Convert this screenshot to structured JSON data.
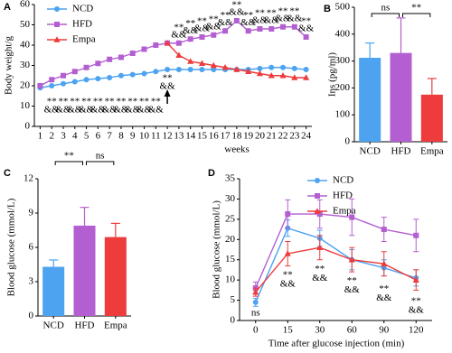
{
  "chart_data": [
    {
      "type": "line",
      "panel": "A",
      "ylabel": "Body weight/g",
      "xlabel": "weeks",
      "categories": [
        "1",
        "2",
        "3",
        "4",
        "5",
        "6",
        "7",
        "8",
        "9",
        "10",
        "11",
        "12",
        "13",
        "14",
        "15",
        "16",
        "17",
        "18",
        "19",
        "20",
        "21",
        "22",
        "23",
        "24"
      ],
      "series": [
        {
          "name": "NCD",
          "color": "#4da3f0",
          "marker": "circle",
          "values": [
            19,
            20,
            21,
            22,
            23,
            23.5,
            24,
            25,
            25.5,
            26,
            27,
            28,
            28,
            28,
            28,
            28,
            28,
            28,
            28,
            28.5,
            29,
            29,
            28.5,
            28
          ]
        },
        {
          "name": "HFD",
          "color": "#b35fd1",
          "marker": "square",
          "values": [
            20,
            23,
            25,
            27,
            29,
            31,
            33,
            34,
            36,
            38,
            40,
            41,
            41,
            43,
            44,
            45,
            47,
            52,
            47,
            48,
            48,
            49,
            49,
            44
          ]
        },
        {
          "name": "Empa",
          "color": "#ee3b3b",
          "marker": "triangle",
          "values": [
            null,
            null,
            null,
            null,
            null,
            null,
            null,
            null,
            null,
            null,
            null,
            41,
            35,
            32,
            31,
            30,
            29,
            28,
            27,
            26,
            25,
            25,
            24,
            24
          ]
        }
      ],
      "ylim": [
        0,
        60
      ],
      "yticks": [
        0,
        10,
        20,
        30,
        40,
        50,
        60
      ],
      "sig_upper_1": [
        null,
        null,
        null,
        null,
        null,
        null,
        null,
        null,
        null,
        null,
        null,
        null,
        "**",
        "**",
        "**",
        "**",
        "**",
        "**",
        "**",
        "**",
        "**",
        "**",
        "**",
        "**"
      ],
      "sig_upper_2": [
        null,
        null,
        null,
        null,
        null,
        null,
        null,
        null,
        null,
        null,
        null,
        null,
        "&&",
        "&&",
        "&&",
        "&&",
        "&&",
        "&&",
        "&&",
        "&&",
        "&&",
        "&&",
        "&&",
        "&&"
      ],
      "sig_lower_1": [
        null,
        "**",
        "**",
        "**",
        "**",
        "**",
        "**",
        "**",
        "**",
        "**",
        "**",
        "**",
        null,
        null,
        null,
        null,
        null,
        null,
        null,
        null,
        null,
        null,
        null,
        null
      ],
      "sig_lower_2": [
        null,
        "&&",
        "&&",
        "&&",
        "&&",
        "&&",
        "&&",
        "&&",
        "&&",
        "&&",
        "&&",
        "&&",
        null,
        null,
        null,
        null,
        null,
        null,
        null,
        null,
        null,
        null,
        null,
        null
      ]
    },
    {
      "type": "bar",
      "panel": "B",
      "ylabel": "Ins (pg/ml)",
      "categories": [
        "NCD",
        "HFD",
        "Empa"
      ],
      "values": [
        312,
        330,
        175
      ],
      "errors": [
        55,
        130,
        60
      ],
      "colors": [
        "#4da3f0",
        "#b35fd1",
        "#ee3b3b"
      ],
      "ylim": [
        0,
        500
      ],
      "yticks": [
        0,
        100,
        200,
        300,
        400,
        500
      ],
      "brackets": [
        {
          "pair": [
            "NCD",
            "HFD"
          ],
          "label": "ns"
        },
        {
          "pair": [
            "HFD",
            "Empa"
          ],
          "label": "**"
        }
      ]
    },
    {
      "type": "bar",
      "panel": "C",
      "ylabel": "Blood glucose (mmol/L)",
      "categories": [
        "NCD",
        "HFD",
        "Empa"
      ],
      "values": [
        4.3,
        7.9,
        6.9
      ],
      "errors": [
        0.6,
        1.6,
        1.2
      ],
      "colors": [
        "#4da3f0",
        "#b35fd1",
        "#ee3b3b"
      ],
      "ylim": [
        0,
        12
      ],
      "yticks": [
        0,
        3,
        6,
        9,
        12
      ],
      "brackets": [
        {
          "pair": [
            "NCD",
            "HFD"
          ],
          "label": "**"
        },
        {
          "pair": [
            "HFD",
            "Empa"
          ],
          "label": "ns"
        }
      ]
    },
    {
      "type": "line",
      "panel": "D",
      "ylabel": "Blood glucose (mmol/L)",
      "xlabel": "Time after glucose injection (min)",
      "categories": [
        "0",
        "15",
        "30",
        "60",
        "90",
        "120"
      ],
      "series": [
        {
          "name": "NCD",
          "color": "#4da3f0",
          "marker": "circle",
          "values": [
            4.5,
            22.8,
            20.3,
            15,
            13,
            10.5
          ],
          "errors": [
            1,
            2,
            2,
            2.5,
            2,
            2
          ]
        },
        {
          "name": "HFD",
          "color": "#b35fd1",
          "marker": "square",
          "values": [
            8,
            26.3,
            26.3,
            25.5,
            22.5,
            21
          ],
          "errors": [
            1.5,
            3.5,
            3.5,
            4.5,
            3,
            4
          ]
        },
        {
          "name": "Empa",
          "color": "#ee3b3b",
          "marker": "triangle",
          "values": [
            7,
            16.5,
            18,
            15,
            14,
            10
          ],
          "errors": [
            1,
            3,
            3,
            3,
            3,
            2.5
          ]
        }
      ],
      "ylim": [
        0,
        35
      ],
      "yticks": [
        0,
        5,
        10,
        15,
        20,
        25,
        30,
        35
      ],
      "sig_lower_1": [
        "ns",
        "**",
        "**",
        "**",
        "**",
        "**"
      ],
      "sig_lower_2": [
        null,
        "&&",
        "&&",
        "&&",
        "&&",
        "&&"
      ]
    }
  ]
}
